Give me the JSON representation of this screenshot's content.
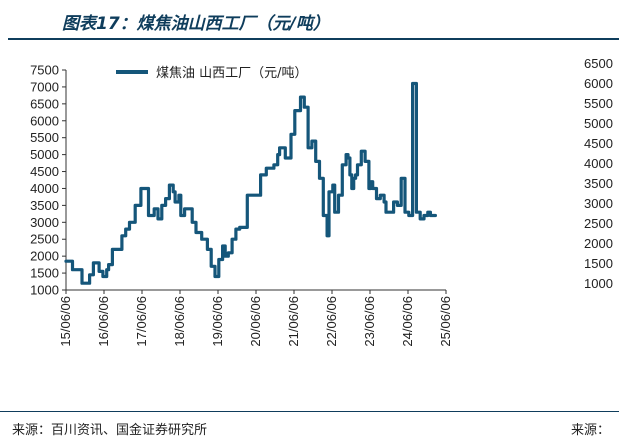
{
  "figure": {
    "title": "图表17：煤焦油山西工厂（元/吨）",
    "source_left": "来源：百川资讯、国金证券研究所",
    "source_right": "来源："
  },
  "chart_data": {
    "type": "line",
    "title": "",
    "xlabel": "",
    "ylabel": "",
    "ylim": [
      1000,
      7500
    ],
    "yticks": [
      "7500",
      "7000",
      "6500",
      "6000",
      "5500",
      "5000",
      "4500",
      "4000",
      "3500",
      "3000",
      "2500",
      "2000",
      "1500",
      "1000"
    ],
    "xticks": [
      "15/06/06",
      "16/06/06",
      "17/06/06",
      "18/06/06",
      "19/06/06",
      "20/06/06",
      "21/06/06",
      "22/06/06",
      "23/06/06",
      "24/06/06",
      "25/06/06"
    ],
    "grid": false,
    "legend_position": "top",
    "series": [
      {
        "name": "煤焦油 山西工厂（元/吨）",
        "color": "#15567a",
        "x": [
          2015.43,
          2015.6,
          2015.85,
          2016.05,
          2016.15,
          2016.3,
          2016.4,
          2016.5,
          2016.55,
          2016.65,
          2016.8,
          2016.9,
          2017.0,
          2017.1,
          2017.25,
          2017.4,
          2017.5,
          2017.6,
          2017.75,
          2017.85,
          2017.95,
          2018.05,
          2018.15,
          2018.25,
          2018.3,
          2018.4,
          2018.45,
          2018.55,
          2018.65,
          2018.75,
          2018.85,
          2019.0,
          2019.15,
          2019.25,
          2019.35,
          2019.45,
          2019.55,
          2019.62,
          2019.7,
          2019.8,
          2019.9,
          2020.0,
          2020.1,
          2020.2,
          2020.35,
          2020.45,
          2020.55,
          2020.7,
          2020.9,
          2021.0,
          2021.05,
          2021.2,
          2021.35,
          2021.45,
          2021.6,
          2021.7,
          2021.8,
          2021.9,
          2022.0,
          2022.1,
          2022.2,
          2022.3,
          2022.35,
          2022.45,
          2022.5,
          2022.6,
          2022.7,
          2022.8,
          2022.85,
          2022.9,
          2022.95,
          2023.0,
          2023.05,
          2023.1,
          2023.2,
          2023.3,
          2023.4,
          2023.45,
          2023.5,
          2023.6,
          2023.7,
          2023.8,
          2023.85,
          2023.95,
          2024.05,
          2024.15,
          2024.25,
          2024.35,
          2024.45,
          2024.55,
          2024.65,
          2024.75,
          2024.85,
          2024.95,
          2025.0,
          2025.02,
          2025.04,
          2025.06,
          2025.1,
          2025.15
        ],
        "values": [
          1850,
          1600,
          1200,
          1450,
          1800,
          1550,
          1400,
          1600,
          1750,
          2200,
          2200,
          2600,
          2800,
          3000,
          3500,
          4000,
          4000,
          3200,
          3400,
          3100,
          3500,
          3700,
          4100,
          3900,
          3600,
          3800,
          3200,
          3400,
          3400,
          3000,
          2700,
          2500,
          2200,
          1700,
          1400,
          1900,
          2300,
          2000,
          2100,
          2500,
          2800,
          2850,
          2850,
          3800,
          3800,
          3800,
          4400,
          4600,
          4700,
          5000,
          5200,
          4900,
          5600,
          6300,
          6700,
          6400,
          5200,
          5400,
          4800,
          4300,
          3200,
          2600,
          3900,
          4100,
          3300,
          3800,
          4700,
          5000,
          4900,
          4400,
          4000,
          4300,
          4400,
          4700,
          5100,
          4800,
          4000,
          4200,
          4000,
          3700,
          3800,
          3600,
          3300,
          3300,
          3600,
          3500,
          4300,
          3300,
          3200,
          7100,
          3300,
          3100,
          3200,
          3300,
          3300,
          3200,
          3200,
          3200,
          3200,
          3200
        ],
        "x_override": null
      }
    ],
    "right_axis_ticks": [
      "6500",
      "6000",
      "5500",
      "5000",
      "4500",
      "4000",
      "3500",
      "3000",
      "2500",
      "2000",
      "1500",
      "1000"
    ]
  }
}
